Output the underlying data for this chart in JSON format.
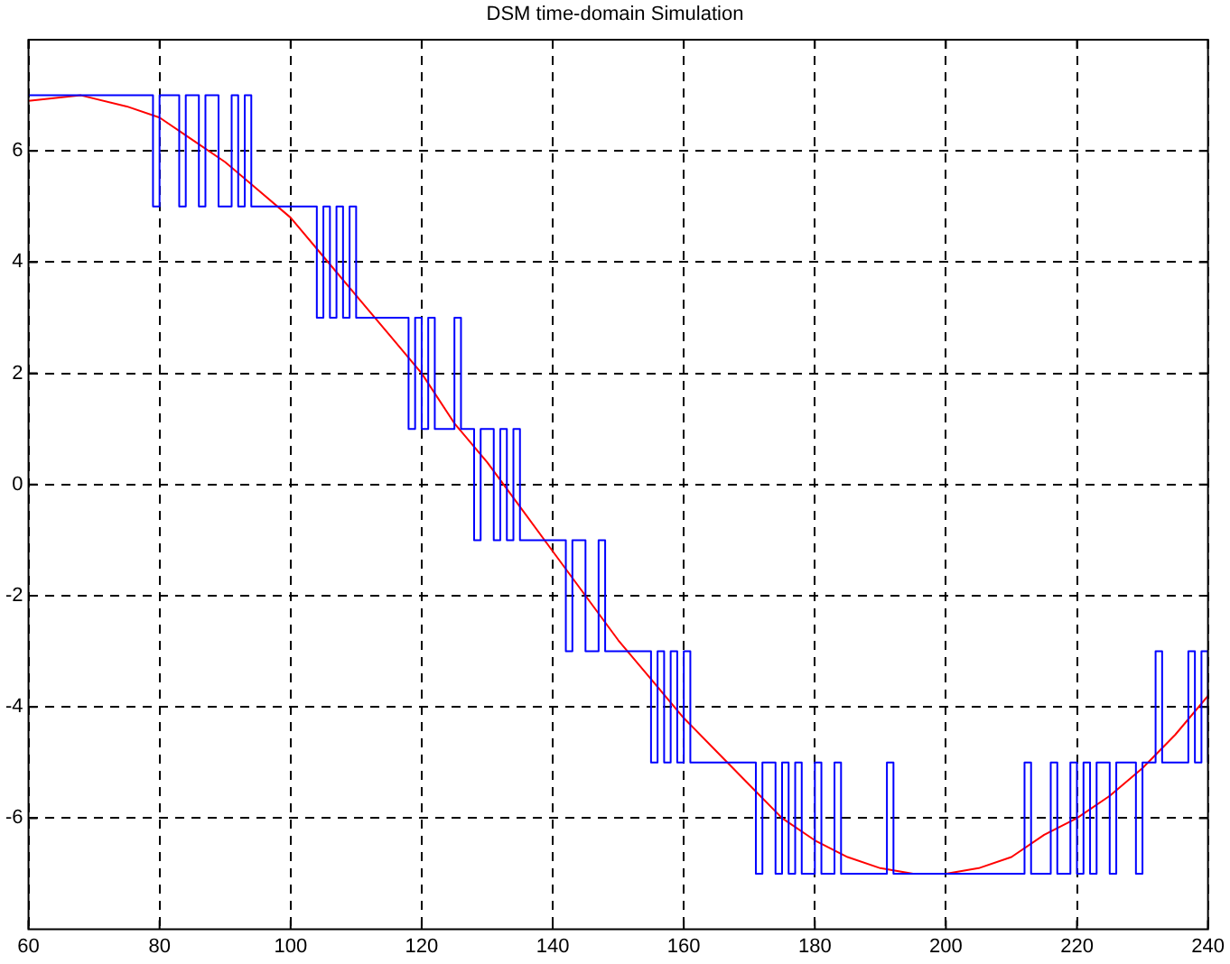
{
  "chart_data": {
    "type": "line",
    "title": "DSM time-domain Simulation",
    "xlim": [
      60,
      240
    ],
    "xticks": [
      60,
      80,
      100,
      120,
      140,
      160,
      180,
      200,
      220,
      240
    ],
    "ylim": [
      -8,
      8
    ],
    "yticks": [
      -6,
      -4,
      -2,
      0,
      2,
      4,
      6
    ],
    "grid": true,
    "legend": false,
    "marker": "none",
    "series": [
      {
        "type": "step",
        "color": "#0000ff",
        "x": [
          60,
          79,
          80,
          83,
          84,
          86,
          87,
          89,
          91,
          92,
          93,
          94,
          104,
          105,
          106,
          107,
          108,
          109,
          110,
          118,
          119,
          120,
          121,
          122,
          125,
          126,
          128,
          129,
          131,
          132,
          133,
          134,
          135,
          142,
          143,
          145,
          147,
          148,
          155,
          156,
          157,
          158,
          159,
          160,
          161,
          171,
          172,
          174,
          175,
          176,
          177,
          178,
          180,
          181,
          183,
          184,
          191,
          192,
          212,
          213,
          216,
          217,
          219,
          220,
          221,
          222,
          223,
          225,
          226,
          229,
          230,
          232,
          233,
          237,
          238,
          239,
          240
        ],
        "values": [
          7,
          5,
          7,
          5,
          7,
          5,
          7,
          5,
          7,
          5,
          7,
          5,
          3,
          5,
          3,
          5,
          3,
          5,
          3,
          1,
          3,
          1,
          3,
          1,
          3,
          1,
          -1,
          1,
          -1,
          1,
          -1,
          1,
          -1,
          -3,
          -1,
          -3,
          -1,
          -3,
          -5,
          -3,
          -5,
          -3,
          -5,
          -3,
          -5,
          -7,
          -5,
          -7,
          -5,
          -7,
          -5,
          -7,
          -5,
          -7,
          -5,
          -7,
          -5,
          -7,
          -5,
          -7,
          -5,
          -7,
          -5,
          -7,
          -5,
          -7,
          -5,
          -7,
          -5,
          -7,
          -5,
          -3,
          -5,
          -3,
          -5,
          -3,
          -5
        ]
      },
      {
        "type": "line",
        "color": "#ff0000",
        "x": [
          60,
          68,
          75,
          80,
          85,
          90,
          95,
          100,
          105,
          110,
          115,
          120,
          125,
          130,
          135,
          140,
          145,
          150,
          155,
          160,
          165,
          170,
          175,
          180,
          185,
          190,
          195,
          200,
          205,
          210,
          215,
          220,
          225,
          230,
          235,
          240
        ],
        "values": [
          6.9,
          7.0,
          6.8,
          6.6,
          6.2,
          5.8,
          5.3,
          4.8,
          4.1,
          3.4,
          2.7,
          2.0,
          1.1,
          0.4,
          -0.4,
          -1.2,
          -2.0,
          -2.8,
          -3.5,
          -4.2,
          -4.8,
          -5.4,
          -6.0,
          -6.4,
          -6.7,
          -6.9,
          -7.0,
          -7.0,
          -6.9,
          -6.7,
          -6.3,
          -6.0,
          -5.6,
          -5.1,
          -4.5,
          -3.8
        ]
      }
    ]
  }
}
